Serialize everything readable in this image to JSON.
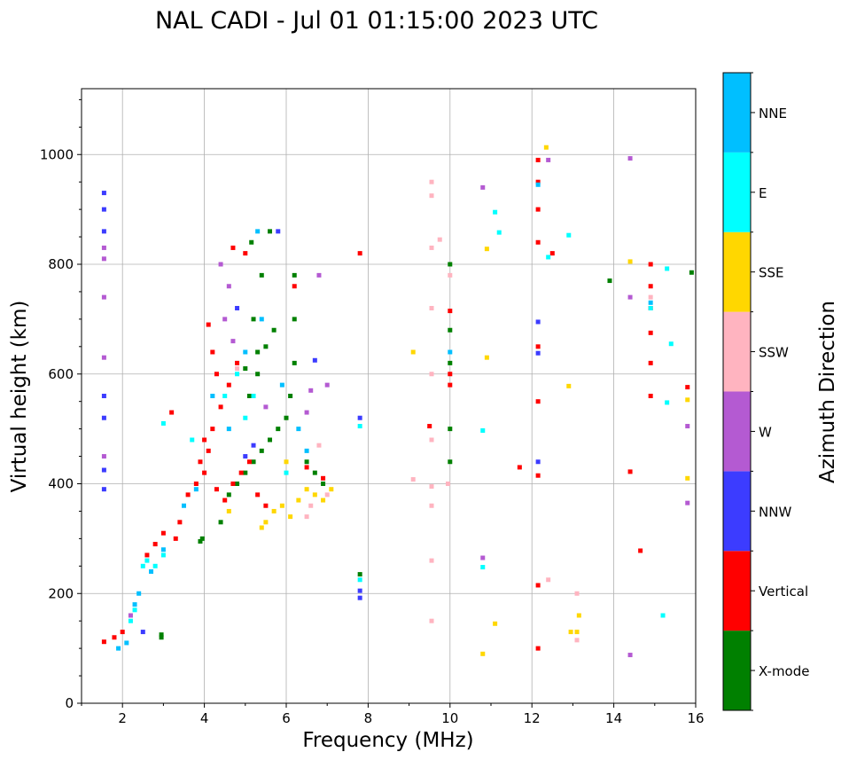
{
  "chart_data": {
    "type": "scatter",
    "title": "NAL CADI - Jul 01 01:15:00 2023 UTC",
    "xlabel": "Frequency (MHz)",
    "ylabel": "Virtual height (km)",
    "xlim": [
      1,
      16
    ],
    "ylim": [
      0,
      1120
    ],
    "xticks": [
      2,
      4,
      6,
      8,
      10,
      12,
      14,
      16
    ],
    "yticks": [
      0,
      200,
      400,
      600,
      800,
      1000
    ],
    "grid": true,
    "colorbar": {
      "label": "Azimuth Direction",
      "placement": "right",
      "categories": [
        {
          "name": "X-mode",
          "color": "#008000"
        },
        {
          "name": "Vertical",
          "color": "#ff0000"
        },
        {
          "name": "NNW",
          "color": "#3c3cff"
        },
        {
          "name": "W",
          "color": "#b45ad2"
        },
        {
          "name": "SSW",
          "color": "#ffb4c0"
        },
        {
          "name": "SSE",
          "color": "#ffd700"
        },
        {
          "name": "E",
          "color": "#00ffff"
        },
        {
          "name": "NNE",
          "color": "#00bfff"
        }
      ]
    },
    "series": [
      {
        "name": "X-mode",
        "points": [
          [
            2.95,
            125
          ],
          [
            2.95,
            120
          ],
          [
            3.9,
            295
          ],
          [
            3.95,
            300
          ],
          [
            4.4,
            330
          ],
          [
            4.6,
            380
          ],
          [
            4.8,
            400
          ],
          [
            5.0,
            420
          ],
          [
            5.2,
            440
          ],
          [
            5.4,
            460
          ],
          [
            5.6,
            480
          ],
          [
            5.1,
            560
          ],
          [
            5.3,
            600
          ],
          [
            5.5,
            650
          ],
          [
            5.2,
            700
          ],
          [
            5.4,
            780
          ],
          [
            5.15,
            840
          ],
          [
            5.6,
            860
          ],
          [
            5.8,
            500
          ],
          [
            6.0,
            520
          ],
          [
            6.1,
            560
          ],
          [
            6.2,
            620
          ],
          [
            6.2,
            700
          ],
          [
            6.2,
            780
          ],
          [
            6.5,
            440
          ],
          [
            6.7,
            420
          ],
          [
            6.9,
            400
          ],
          [
            5.0,
            610
          ],
          [
            5.3,
            640
          ],
          [
            5.7,
            680
          ],
          [
            10.0,
            440
          ],
          [
            10.0,
            500
          ],
          [
            10.0,
            620
          ],
          [
            10.0,
            680
          ],
          [
            10.0,
            800
          ],
          [
            13.9,
            770
          ],
          [
            15.9,
            785
          ],
          [
            7.8,
            235
          ]
        ]
      },
      {
        "name": "Vertical",
        "points": [
          [
            1.55,
            112
          ],
          [
            1.8,
            120
          ],
          [
            2.0,
            130
          ],
          [
            2.6,
            270
          ],
          [
            2.8,
            290
          ],
          [
            3.0,
            310
          ],
          [
            3.3,
            300
          ],
          [
            3.4,
            330
          ],
          [
            3.6,
            380
          ],
          [
            3.8,
            400
          ],
          [
            4.0,
            420
          ],
          [
            4.1,
            460
          ],
          [
            4.2,
            500
          ],
          [
            4.4,
            540
          ],
          [
            4.6,
            580
          ],
          [
            4.8,
            620
          ],
          [
            3.9,
            440
          ],
          [
            4.0,
            480
          ],
          [
            4.3,
            600
          ],
          [
            4.2,
            640
          ],
          [
            4.1,
            690
          ],
          [
            4.3,
            390
          ],
          [
            4.5,
            370
          ],
          [
            4.7,
            400
          ],
          [
            4.9,
            420
          ],
          [
            5.1,
            440
          ],
          [
            5.3,
            380
          ],
          [
            5.5,
            360
          ],
          [
            4.7,
            830
          ],
          [
            5.0,
            820
          ],
          [
            6.2,
            760
          ],
          [
            6.5,
            430
          ],
          [
            6.9,
            410
          ],
          [
            10.0,
            580
          ],
          [
            10.0,
            600
          ],
          [
            10.0,
            715
          ],
          [
            12.15,
            100
          ],
          [
            12.15,
            215
          ],
          [
            12.15,
            415
          ],
          [
            12.15,
            550
          ],
          [
            12.15,
            650
          ],
          [
            12.15,
            900
          ],
          [
            12.15,
            950
          ],
          [
            12.15,
            990
          ],
          [
            12.15,
            840
          ],
          [
            12.5,
            820
          ],
          [
            11.7,
            430
          ],
          [
            14.65,
            278
          ],
          [
            14.4,
            422
          ],
          [
            14.9,
            560
          ],
          [
            14.9,
            620
          ],
          [
            14.9,
            675
          ],
          [
            14.9,
            720
          ],
          [
            14.9,
            760
          ],
          [
            14.9,
            800
          ],
          [
            15.8,
            576
          ],
          [
            7.8,
            820
          ],
          [
            9.5,
            505
          ],
          [
            3.2,
            530
          ]
        ]
      },
      {
        "name": "NNW",
        "points": [
          [
            1.55,
            390
          ],
          [
            1.55,
            425
          ],
          [
            1.55,
            520
          ],
          [
            1.55,
            560
          ],
          [
            1.55,
            860
          ],
          [
            1.55,
            900
          ],
          [
            1.55,
            930
          ],
          [
            7.8,
            520
          ],
          [
            7.8,
            205
          ],
          [
            7.8,
            192
          ],
          [
            12.15,
            638
          ],
          [
            12.15,
            695
          ],
          [
            12.15,
            440
          ],
          [
            5.0,
            450
          ],
          [
            5.2,
            470
          ],
          [
            4.8,
            720
          ],
          [
            5.8,
            860
          ],
          [
            6.7,
            625
          ],
          [
            2.5,
            130
          ]
        ]
      },
      {
        "name": "W",
        "points": [
          [
            1.55,
            630
          ],
          [
            1.55,
            740
          ],
          [
            1.55,
            810
          ],
          [
            1.55,
            830
          ],
          [
            1.55,
            450
          ],
          [
            4.4,
            800
          ],
          [
            4.6,
            760
          ],
          [
            4.5,
            700
          ],
          [
            4.7,
            660
          ],
          [
            5.5,
            540
          ],
          [
            6.5,
            530
          ],
          [
            6.6,
            570
          ],
          [
            6.8,
            780
          ],
          [
            7.0,
            580
          ],
          [
            10.8,
            265
          ],
          [
            10.8,
            940
          ],
          [
            12.4,
            990
          ],
          [
            14.4,
            88
          ],
          [
            14.4,
            740
          ],
          [
            14.4,
            993
          ],
          [
            15.8,
            505
          ],
          [
            15.8,
            365
          ],
          [
            2.2,
            160
          ]
        ]
      },
      {
        "name": "SSW",
        "points": [
          [
            9.55,
            150
          ],
          [
            9.55,
            260
          ],
          [
            9.55,
            360
          ],
          [
            9.55,
            395
          ],
          [
            9.55,
            480
          ],
          [
            9.55,
            600
          ],
          [
            9.55,
            720
          ],
          [
            9.55,
            830
          ],
          [
            9.55,
            950
          ],
          [
            9.55,
            925
          ],
          [
            9.95,
            400
          ],
          [
            9.75,
            845
          ],
          [
            10.0,
            780
          ],
          [
            6.8,
            470
          ],
          [
            6.6,
            360
          ],
          [
            6.5,
            340
          ],
          [
            7.0,
            380
          ],
          [
            12.4,
            225
          ],
          [
            13.1,
            115
          ],
          [
            13.1,
            200
          ],
          [
            9.1,
            408
          ],
          [
            14.9,
            740
          ],
          [
            4.8,
            610
          ]
        ]
      },
      {
        "name": "SSE",
        "points": [
          [
            5.5,
            330
          ],
          [
            5.7,
            350
          ],
          [
            5.9,
            360
          ],
          [
            6.1,
            340
          ],
          [
            6.3,
            370
          ],
          [
            6.5,
            390
          ],
          [
            6.7,
            380
          ],
          [
            6.9,
            370
          ],
          [
            7.1,
            390
          ],
          [
            5.4,
            320
          ],
          [
            6.0,
            440
          ],
          [
            9.1,
            640
          ],
          [
            10.8,
            90
          ],
          [
            11.1,
            145
          ],
          [
            10.9,
            630
          ],
          [
            10.9,
            828
          ],
          [
            12.35,
            1013
          ],
          [
            12.95,
            130
          ],
          [
            13.1,
            130
          ],
          [
            13.15,
            160
          ],
          [
            12.9,
            578
          ],
          [
            14.4,
            805
          ],
          [
            15.8,
            410
          ],
          [
            15.8,
            553
          ],
          [
            4.6,
            350
          ]
        ]
      },
      {
        "name": "E",
        "points": [
          [
            2.3,
            170
          ],
          [
            2.2,
            150
          ],
          [
            2.6,
            260
          ],
          [
            2.8,
            250
          ],
          [
            3.0,
            270
          ],
          [
            3.7,
            480
          ],
          [
            4.5,
            560
          ],
          [
            4.8,
            600
          ],
          [
            5.0,
            520
          ],
          [
            5.2,
            560
          ],
          [
            6.0,
            420
          ],
          [
            7.8,
            505
          ],
          [
            7.8,
            225
          ],
          [
            10.8,
            248
          ],
          [
            10.8,
            497
          ],
          [
            11.1,
            895
          ],
          [
            11.2,
            858
          ],
          [
            12.4,
            813
          ],
          [
            12.9,
            853
          ],
          [
            14.9,
            720
          ],
          [
            15.2,
            160
          ],
          [
            15.3,
            548
          ],
          [
            15.4,
            655
          ],
          [
            15.3,
            792
          ],
          [
            3.0,
            510
          ],
          [
            2.5,
            250
          ]
        ]
      },
      {
        "name": "NNE",
        "points": [
          [
            1.9,
            100
          ],
          [
            2.1,
            110
          ],
          [
            2.3,
            180
          ],
          [
            2.4,
            200
          ],
          [
            2.7,
            240
          ],
          [
            3.0,
            280
          ],
          [
            3.5,
            360
          ],
          [
            3.8,
            390
          ],
          [
            4.2,
            560
          ],
          [
            4.6,
            500
          ],
          [
            5.0,
            640
          ],
          [
            5.4,
            700
          ],
          [
            5.3,
            860
          ],
          [
            5.9,
            580
          ],
          [
            6.3,
            500
          ],
          [
            6.5,
            460
          ],
          [
            12.15,
            945
          ],
          [
            10.0,
            640
          ],
          [
            14.9,
            730
          ]
        ]
      }
    ]
  }
}
